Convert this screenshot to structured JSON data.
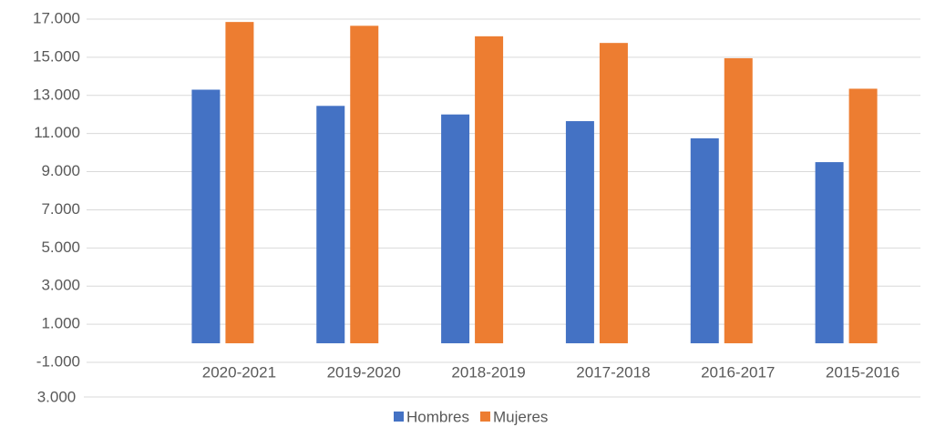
{
  "chart_data": {
    "type": "bar",
    "categories": [
      "2020-2021",
      "2019-2020",
      "2018-2019",
      "2017-2018",
      "2016-2017",
      "2015-2016"
    ],
    "series": [
      {
        "name": "Hombres",
        "color": "#4472c4",
        "values": [
          13300,
          12450,
          12000,
          11650,
          10750,
          9500
        ]
      },
      {
        "name": "Mujeres",
        "color": "#ed7d31",
        "values": [
          16850,
          16650,
          16100,
          15750,
          14950,
          13350
        ]
      }
    ],
    "ylim": [
      -1000,
      17000
    ],
    "yticks": [
      {
        "value": -1000,
        "label": "-1.000"
      },
      {
        "value": 1000,
        "label": "1.000"
      },
      {
        "value": 3000,
        "label": "3.000"
      },
      {
        "value": 5000,
        "label": "5.000"
      },
      {
        "value": 7000,
        "label": "7.000"
      },
      {
        "value": 9000,
        "label": "9.000"
      },
      {
        "value": 11000,
        "label": "11.000"
      },
      {
        "value": 13000,
        "label": "13.000"
      },
      {
        "value": 15000,
        "label": "15.000"
      },
      {
        "value": 17000,
        "label": "17.000"
      }
    ],
    "annotation": "3.000",
    "grid": true,
    "legend": "bottom"
  }
}
